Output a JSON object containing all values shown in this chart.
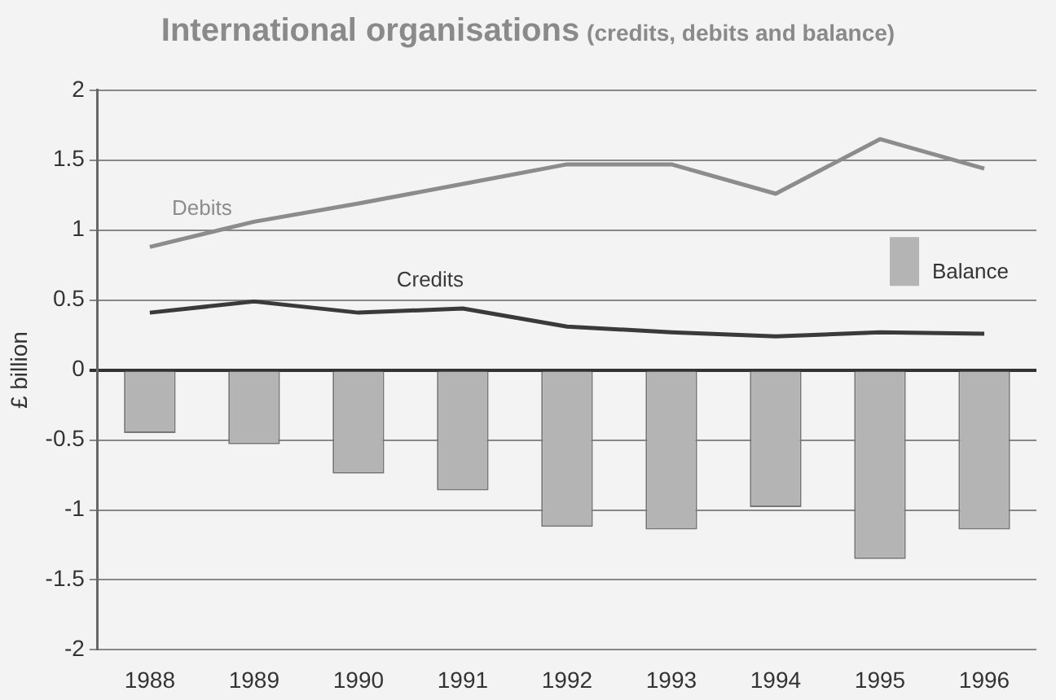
{
  "chart_data": {
    "type": "bar",
    "title": "International organisations",
    "subtitle": "(credits, debits and balance)",
    "ylabel": "£ billion",
    "categories": [
      "1988",
      "1989",
      "1990",
      "1991",
      "1992",
      "1993",
      "1994",
      "1995",
      "1996"
    ],
    "series": [
      {
        "name": "Balance",
        "color": "#b4b4b4",
        "values": [
          -0.45,
          -0.53,
          -0.74,
          -0.86,
          -1.12,
          -1.14,
          -0.98,
          -1.35,
          -1.14
        ]
      },
      {
        "name": "Debits",
        "type": "line",
        "color": "#8c8c8c",
        "values": [
          0.88,
          1.06,
          1.19,
          1.33,
          1.47,
          1.47,
          1.26,
          1.65,
          1.44
        ]
      },
      {
        "name": "Credits",
        "type": "line",
        "color": "#3a3a3a",
        "values": [
          0.41,
          0.49,
          0.41,
          0.44,
          0.31,
          0.27,
          0.24,
          0.27,
          0.26
        ]
      }
    ],
    "ylim": [
      -2,
      2
    ],
    "yticks": [
      -2,
      -1.5,
      -1,
      -0.5,
      0,
      0.5,
      1,
      1.5,
      2
    ],
    "grid": "y",
    "legend": "right",
    "marker": "none"
  }
}
